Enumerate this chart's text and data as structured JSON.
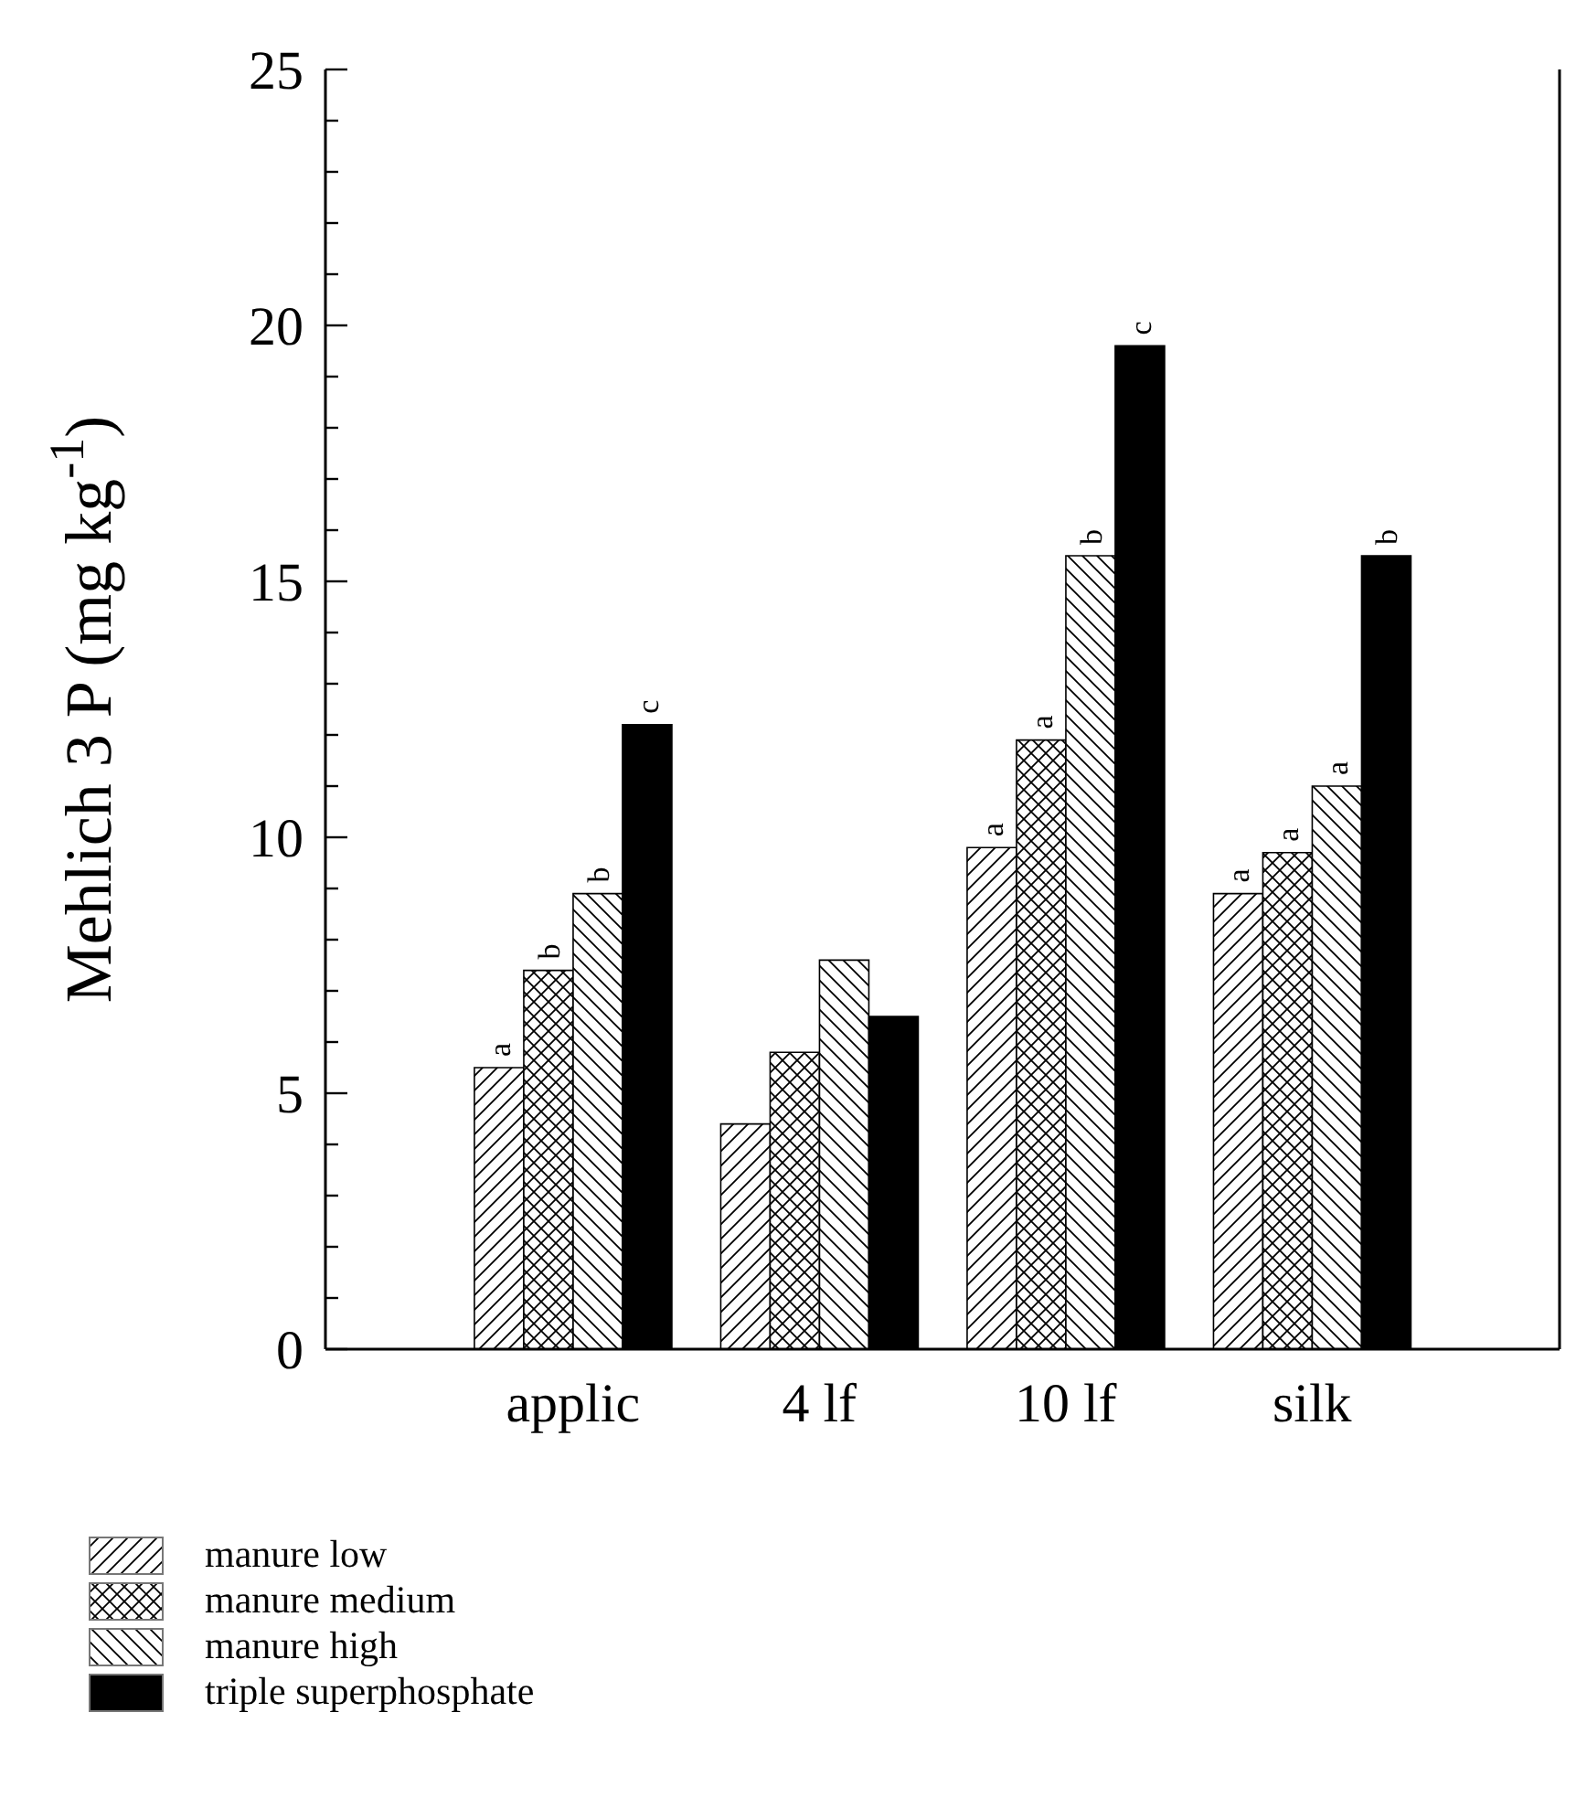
{
  "chart_data": {
    "type": "bar",
    "ylabel": "Mehlich 3 P (mg kg$^{-1}$)",
    "categories": [
      "applic",
      "4 lf",
      "10 lf",
      "silk"
    ],
    "series": [
      {
        "name": "manure low",
        "color": "#000000",
        "values": [
          5.5,
          4.4,
          9.8,
          8.9
        ],
        "value_labels": [
          "a",
          null,
          "a",
          "a"
        ]
      },
      {
        "name": "manure medium",
        "color": "#000000",
        "values": [
          7.4,
          5.8,
          11.9,
          9.7
        ],
        "value_labels": [
          "b",
          null,
          "a",
          "a"
        ]
      },
      {
        "name": "manure high",
        "color": "#000000",
        "values": [
          8.9,
          7.6,
          15.5,
          11.0
        ],
        "value_labels": [
          "b",
          null,
          "b",
          "a"
        ]
      },
      {
        "name": "triple superphosphate",
        "color": "#000000",
        "values": [
          12.2,
          6.5,
          19.6,
          15.5
        ],
        "value_labels": [
          "c",
          null,
          "c",
          "b"
        ]
      }
    ],
    "ylim": [
      0,
      25
    ],
    "yticks": [
      0,
      {
        "value": 1,
        "label": null
      },
      {
        "value": 2,
        "label": null
      },
      {
        "value": 3,
        "label": null
      },
      {
        "value": 4,
        "label": null
      },
      5,
      {
        "value": 6,
        "label": null
      },
      {
        "value": 7,
        "label": null
      },
      {
        "value": 8,
        "label": null
      },
      {
        "value": 9,
        "label": null
      },
      10,
      {
        "value": 11,
        "label": null
      },
      {
        "value": 12,
        "label": null
      },
      {
        "value": 13,
        "label": null
      },
      {
        "value": 14,
        "label": null
      },
      15,
      {
        "value": 16,
        "label": null
      },
      {
        "value": 17,
        "label": null
      },
      {
        "value": 18,
        "label": null
      },
      {
        "value": 19,
        "label": null
      },
      20,
      {
        "value": 21,
        "label": null
      },
      {
        "value": 22,
        "label": null
      },
      {
        "value": 23,
        "label": null
      },
      {
        "value": 24,
        "label": null
      },
      25
    ],
    "grid": false,
    "legend": "bottom left"
  }
}
